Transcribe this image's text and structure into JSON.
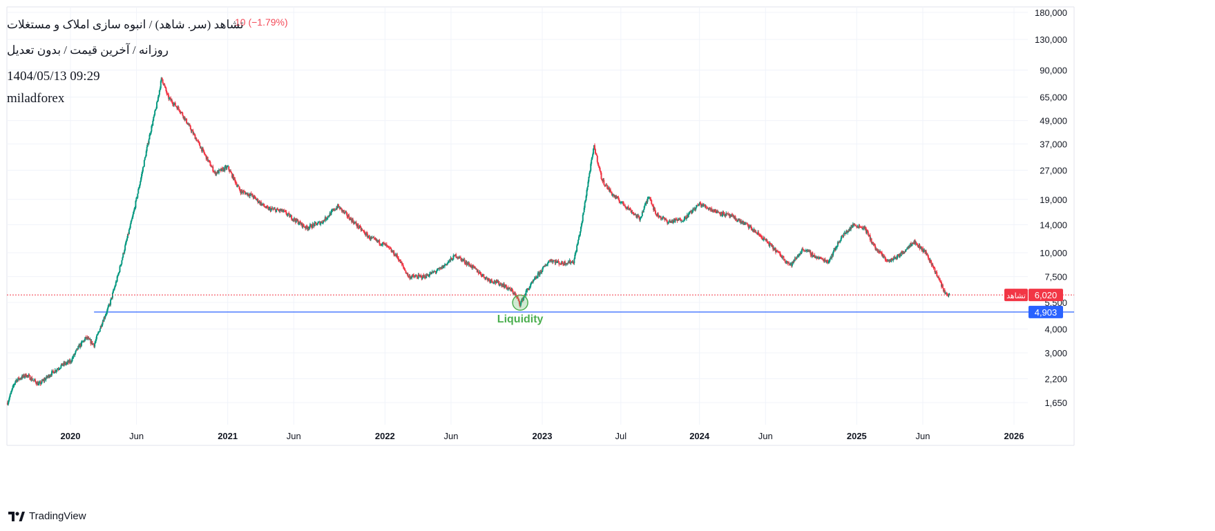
{
  "header": {
    "symbol_title": "تشاهد (سر. شاهد) / انبوه سازی املاک و مستغلات",
    "change_text": "10 (−1.79%)",
    "ohlc_faded": "",
    "interval_line": "روزانه / آخرین قیمت / بدون تعدیل",
    "datetime": "1404/05/13 09:29",
    "author": "miladforex"
  },
  "branding": {
    "name": "TradingView",
    "logo_icon": "tradingview-logo-icon"
  },
  "colors": {
    "up": "#089981",
    "down": "#f23645",
    "support_line": "#2962ff",
    "last_price_line": "#f23645",
    "annotation": "#4caf50",
    "grid": "#f0f3fa",
    "axis_text": "#131722"
  },
  "chart_data": {
    "type": "candlestick",
    "scale": "log",
    "y_ticks": [
      "180,000",
      "130,000",
      "90,000",
      "65,000",
      "49,000",
      "37,000",
      "27,000",
      "19,000",
      "14,000",
      "10,000",
      "7,500",
      "5,500",
      "4,000",
      "3,000",
      "2,200",
      "1,650"
    ],
    "y_tick_values": [
      180000,
      130000,
      90000,
      65000,
      49000,
      37000,
      27000,
      19000,
      14000,
      10000,
      7500,
      5500,
      4000,
      3000,
      2200,
      1650
    ],
    "x_ticks": [
      {
        "label": "2020",
        "bold": true,
        "date": 2020.0
      },
      {
        "label": "Jun",
        "bold": false,
        "date": 2020.42
      },
      {
        "label": "2021",
        "bold": true,
        "date": 2021.0
      },
      {
        "label": "Jun",
        "bold": false,
        "date": 2021.42
      },
      {
        "label": "2022",
        "bold": true,
        "date": 2022.0
      },
      {
        "label": "Jun",
        "bold": false,
        "date": 2022.42
      },
      {
        "label": "2023",
        "bold": true,
        "date": 2023.0
      },
      {
        "label": "Jul",
        "bold": false,
        "date": 2023.5
      },
      {
        "label": "2024",
        "bold": true,
        "date": 2024.0
      },
      {
        "label": "Jun",
        "bold": false,
        "date": 2024.42
      },
      {
        "label": "2025",
        "bold": true,
        "date": 2025.0
      },
      {
        "label": "Jun",
        "bold": false,
        "date": 2025.42
      },
      {
        "label": "2026",
        "bold": true,
        "date": 2026.0
      }
    ],
    "x_range": [
      2019.6,
      2026.1
    ],
    "y_range": [
      1450,
      200000
    ],
    "price_path": [
      [
        2019.6,
        1650
      ],
      [
        2019.65,
        2150
      ],
      [
        2019.72,
        2300
      ],
      [
        2019.8,
        2050
      ],
      [
        2019.88,
        2350
      ],
      [
        2019.95,
        2600
      ],
      [
        2020.0,
        2700
      ],
      [
        2020.05,
        3200
      ],
      [
        2020.1,
        3600
      ],
      [
        2020.15,
        3300
      ],
      [
        2020.2,
        4300
      ],
      [
        2020.25,
        5400
      ],
      [
        2020.3,
        7500
      ],
      [
        2020.35,
        11000
      ],
      [
        2020.4,
        16000
      ],
      [
        2020.45,
        25000
      ],
      [
        2020.5,
        40000
      ],
      [
        2020.55,
        60000
      ],
      [
        2020.58,
        82000
      ],
      [
        2020.62,
        65000
      ],
      [
        2020.7,
        55000
      ],
      [
        2020.78,
        42000
      ],
      [
        2020.85,
        33000
      ],
      [
        2020.92,
        26000
      ],
      [
        2021.0,
        28000
      ],
      [
        2021.08,
        21000
      ],
      [
        2021.15,
        20000
      ],
      [
        2021.25,
        17000
      ],
      [
        2021.35,
        16500
      ],
      [
        2021.42,
        15000
      ],
      [
        2021.5,
        13500
      ],
      [
        2021.6,
        14500
      ],
      [
        2021.7,
        17500
      ],
      [
        2021.8,
        14500
      ],
      [
        2021.9,
        12000
      ],
      [
        2022.0,
        11000
      ],
      [
        2022.08,
        9500
      ],
      [
        2022.15,
        7500
      ],
      [
        2022.25,
        7500
      ],
      [
        2022.35,
        8200
      ],
      [
        2022.45,
        9700
      ],
      [
        2022.55,
        8500
      ],
      [
        2022.65,
        7300
      ],
      [
        2022.75,
        6800
      ],
      [
        2022.82,
        6200
      ],
      [
        2022.86,
        5400
      ],
      [
        2022.9,
        6300
      ],
      [
        2022.97,
        7600
      ],
      [
        2023.05,
        9200
      ],
      [
        2023.12,
        8800
      ],
      [
        2023.2,
        9000
      ],
      [
        2023.25,
        14000
      ],
      [
        2023.3,
        26000
      ],
      [
        2023.33,
        36000
      ],
      [
        2023.38,
        24000
      ],
      [
        2023.45,
        20000
      ],
      [
        2023.55,
        17000
      ],
      [
        2023.62,
        15000
      ],
      [
        2023.68,
        20000
      ],
      [
        2023.72,
        16000
      ],
      [
        2023.8,
        14500
      ],
      [
        2023.9,
        15000
      ],
      [
        2024.0,
        18000
      ],
      [
        2024.1,
        16500
      ],
      [
        2024.2,
        15500
      ],
      [
        2024.3,
        14000
      ],
      [
        2024.4,
        12000
      ],
      [
        2024.5,
        10000
      ],
      [
        2024.58,
        8600
      ],
      [
        2024.66,
        10500
      ],
      [
        2024.74,
        9500
      ],
      [
        2024.82,
        9000
      ],
      [
        2024.9,
        12000
      ],
      [
        2024.98,
        14000
      ],
      [
        2025.05,
        13500
      ],
      [
        2025.12,
        10500
      ],
      [
        2025.2,
        9000
      ],
      [
        2025.28,
        9800
      ],
      [
        2025.36,
        11500
      ],
      [
        2025.44,
        10000
      ],
      [
        2025.5,
        8000
      ],
      [
        2025.56,
        6200
      ],
      [
        2025.59,
        6020
      ]
    ],
    "last_price": {
      "value": 6020,
      "label": "6,020",
      "tag": "تشاهد"
    },
    "support": {
      "value": 4903,
      "label": "4,903",
      "from": 2020.15
    },
    "annotation": {
      "text": "Liquidity",
      "date": 2022.86,
      "value": 5400
    }
  }
}
